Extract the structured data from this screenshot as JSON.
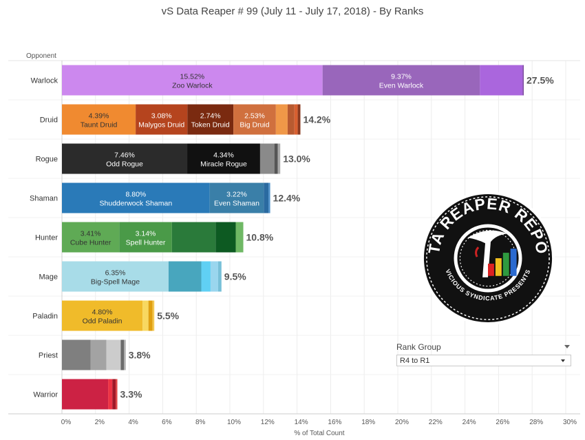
{
  "title": "vS Data Reaper #  99 (July 11 - July 17, 2018) - By Ranks",
  "chart_data": {
    "type": "bar",
    "orientation": "horizontal",
    "stacked": true,
    "title": "vS Data Reaper #  99 (July 11 - July 17, 2018) - By Ranks",
    "ylabel": "Opponent",
    "xlabel": "% of Total Count",
    "xlim": [
      0,
      30
    ],
    "xticks": [
      "0%",
      "2%",
      "4%",
      "6%",
      "8%",
      "10%",
      "12%",
      "14%",
      "16%",
      "18%",
      "20%",
      "22%",
      "24%",
      "26%",
      "28%",
      "30%"
    ],
    "categories": [
      "Warlock",
      "Druid",
      "Rogue",
      "Shaman",
      "Hunter",
      "Mage",
      "Paladin",
      "Priest",
      "Warrior"
    ],
    "totals": [
      "27.5%",
      "14.2%",
      "13.0%",
      "12.4%",
      "10.8%",
      "9.5%",
      "5.5%",
      "3.8%",
      "3.3%"
    ],
    "bars": [
      {
        "class": "Warlock",
        "total": 27.5,
        "segments": [
          {
            "value": 15.52,
            "label": "15.52%",
            "name": "Zoo Warlock",
            "color": "#cc88ee",
            "text_color": "#333333"
          },
          {
            "value": 9.37,
            "label": "9.37%",
            "name": "Even Warlock",
            "color": "#9966bb",
            "text_color": "#ffffff"
          },
          {
            "value": 2.55,
            "label": "",
            "name": "",
            "color": "#aa66dd"
          },
          {
            "value": 0.06,
            "label": "",
            "name": "",
            "color": "#7a4a9a"
          }
        ]
      },
      {
        "class": "Druid",
        "total": 14.2,
        "segments": [
          {
            "value": 4.39,
            "label": "4.39%",
            "name": "Taunt Druid",
            "color": "#f08a30",
            "text_color": "#333333"
          },
          {
            "value": 3.08,
            "label": "3.08%",
            "name": "Malygos Druid",
            "color": "#b5441e",
            "text_color": "#ffffff"
          },
          {
            "value": 2.74,
            "label": "2.74%",
            "name": "Token Druid",
            "color": "#7a2a10",
            "text_color": "#ffffff"
          },
          {
            "value": 2.53,
            "label": "2.53%",
            "name": "Big Druid",
            "color": "#d0703e",
            "text_color": "#ffffff"
          },
          {
            "value": 0.7,
            "label": "",
            "name": "",
            "color": "#f09848"
          },
          {
            "value": 0.4,
            "label": "",
            "name": "",
            "color": "#b85a30"
          },
          {
            "value": 0.2,
            "label": "",
            "name": "",
            "color": "#d86030"
          },
          {
            "value": 0.16,
            "label": "",
            "name": "",
            "color": "#8a3a20"
          }
        ]
      },
      {
        "class": "Rogue",
        "total": 13.0,
        "segments": [
          {
            "value": 7.46,
            "label": "7.46%",
            "name": "Odd Rogue",
            "color": "#2b2b2b",
            "text_color": "#ffffff"
          },
          {
            "value": 4.34,
            "label": "4.34%",
            "name": "Miracle Rogue",
            "color": "#111111",
            "text_color": "#ffffff"
          },
          {
            "value": 0.85,
            "label": "",
            "name": "",
            "color": "#8a8a8a"
          },
          {
            "value": 0.2,
            "label": "",
            "name": "",
            "color": "#555555"
          },
          {
            "value": 0.15,
            "label": "",
            "name": "",
            "color": "#aaaaaa"
          }
        ]
      },
      {
        "class": "Shaman",
        "total": 12.4,
        "segments": [
          {
            "value": 8.8,
            "label": "8.80%",
            "name": "Shudderwock Shaman",
            "color": "#2a7ab8",
            "text_color": "#ffffff"
          },
          {
            "value": 3.22,
            "label": "3.22%",
            "name": "Even Shaman",
            "color": "#3a7fa8",
            "text_color": "#ffffff"
          },
          {
            "value": 0.28,
            "label": "",
            "name": "",
            "color": "#2a6aa0"
          },
          {
            "value": 0.1,
            "label": "",
            "name": "",
            "color": "#4a8ec8"
          }
        ]
      },
      {
        "class": "Hunter",
        "total": 10.8,
        "segments": [
          {
            "value": 3.41,
            "label": "3.41%",
            "name": "Cube Hunter",
            "color": "#5faa55",
            "text_color": "#333333"
          },
          {
            "value": 3.14,
            "label": "3.14%",
            "name": "Spell Hunter",
            "color": "#4a9a48",
            "text_color": "#ffffff"
          },
          {
            "value": 2.6,
            "label": "",
            "name": "",
            "color": "#2a7a3a"
          },
          {
            "value": 1.2,
            "label": "",
            "name": "",
            "color": "#0d5a22"
          },
          {
            "value": 0.45,
            "label": "",
            "name": "",
            "color": "#6fb865"
          }
        ]
      },
      {
        "class": "Mage",
        "total": 9.5,
        "segments": [
          {
            "value": 6.35,
            "label": "6.35%",
            "name": "Big-Spell Mage",
            "color": "#a8dce8",
            "text_color": "#333333"
          },
          {
            "value": 1.95,
            "label": "",
            "name": "",
            "color": "#48a6be"
          },
          {
            "value": 0.55,
            "label": "",
            "name": "",
            "color": "#60d0f4"
          },
          {
            "value": 0.45,
            "label": "",
            "name": "",
            "color": "#9ad6ee"
          },
          {
            "value": 0.2,
            "label": "",
            "name": "",
            "color": "#78c0d8"
          }
        ]
      },
      {
        "class": "Paladin",
        "total": 5.5,
        "segments": [
          {
            "value": 4.8,
            "label": "4.80%",
            "name": "Odd Paladin",
            "color": "#f0bb2a",
            "text_color": "#333333"
          },
          {
            "value": 0.35,
            "label": "",
            "name": "",
            "color": "#f8d860"
          },
          {
            "value": 0.25,
            "label": "",
            "name": "",
            "color": "#e0a010"
          },
          {
            "value": 0.1,
            "label": "",
            "name": "",
            "color": "#f4c850"
          }
        ]
      },
      {
        "class": "Priest",
        "total": 3.8,
        "segments": [
          {
            "value": 1.7,
            "label": "",
            "name": "",
            "color": "#7f7f7f"
          },
          {
            "value": 0.95,
            "label": "",
            "name": "",
            "color": "#a3a3a3"
          },
          {
            "value": 0.85,
            "label": "",
            "name": "",
            "color": "#cccccc"
          },
          {
            "value": 0.2,
            "label": "",
            "name": "",
            "color": "#6a6a6a"
          },
          {
            "value": 0.1,
            "label": "",
            "name": "",
            "color": "#b0b0b0"
          }
        ]
      },
      {
        "class": "Warrior",
        "total": 3.3,
        "segments": [
          {
            "value": 2.75,
            "label": "",
            "name": "",
            "color": "#cc2244"
          },
          {
            "value": 0.25,
            "label": "",
            "name": "",
            "color": "#ee3344"
          },
          {
            "value": 0.2,
            "label": "",
            "name": "",
            "color": "#a01828"
          },
          {
            "value": 0.1,
            "label": "",
            "name": "",
            "color": "#dd4444"
          }
        ]
      }
    ]
  },
  "rank_filter": {
    "title": "Rank Group",
    "selected": "R4 to R1"
  },
  "logo": {
    "top_text": "DATA REAPER REPORT",
    "bottom_text": "VICIOUS SYNDICATE PRESENTS"
  }
}
